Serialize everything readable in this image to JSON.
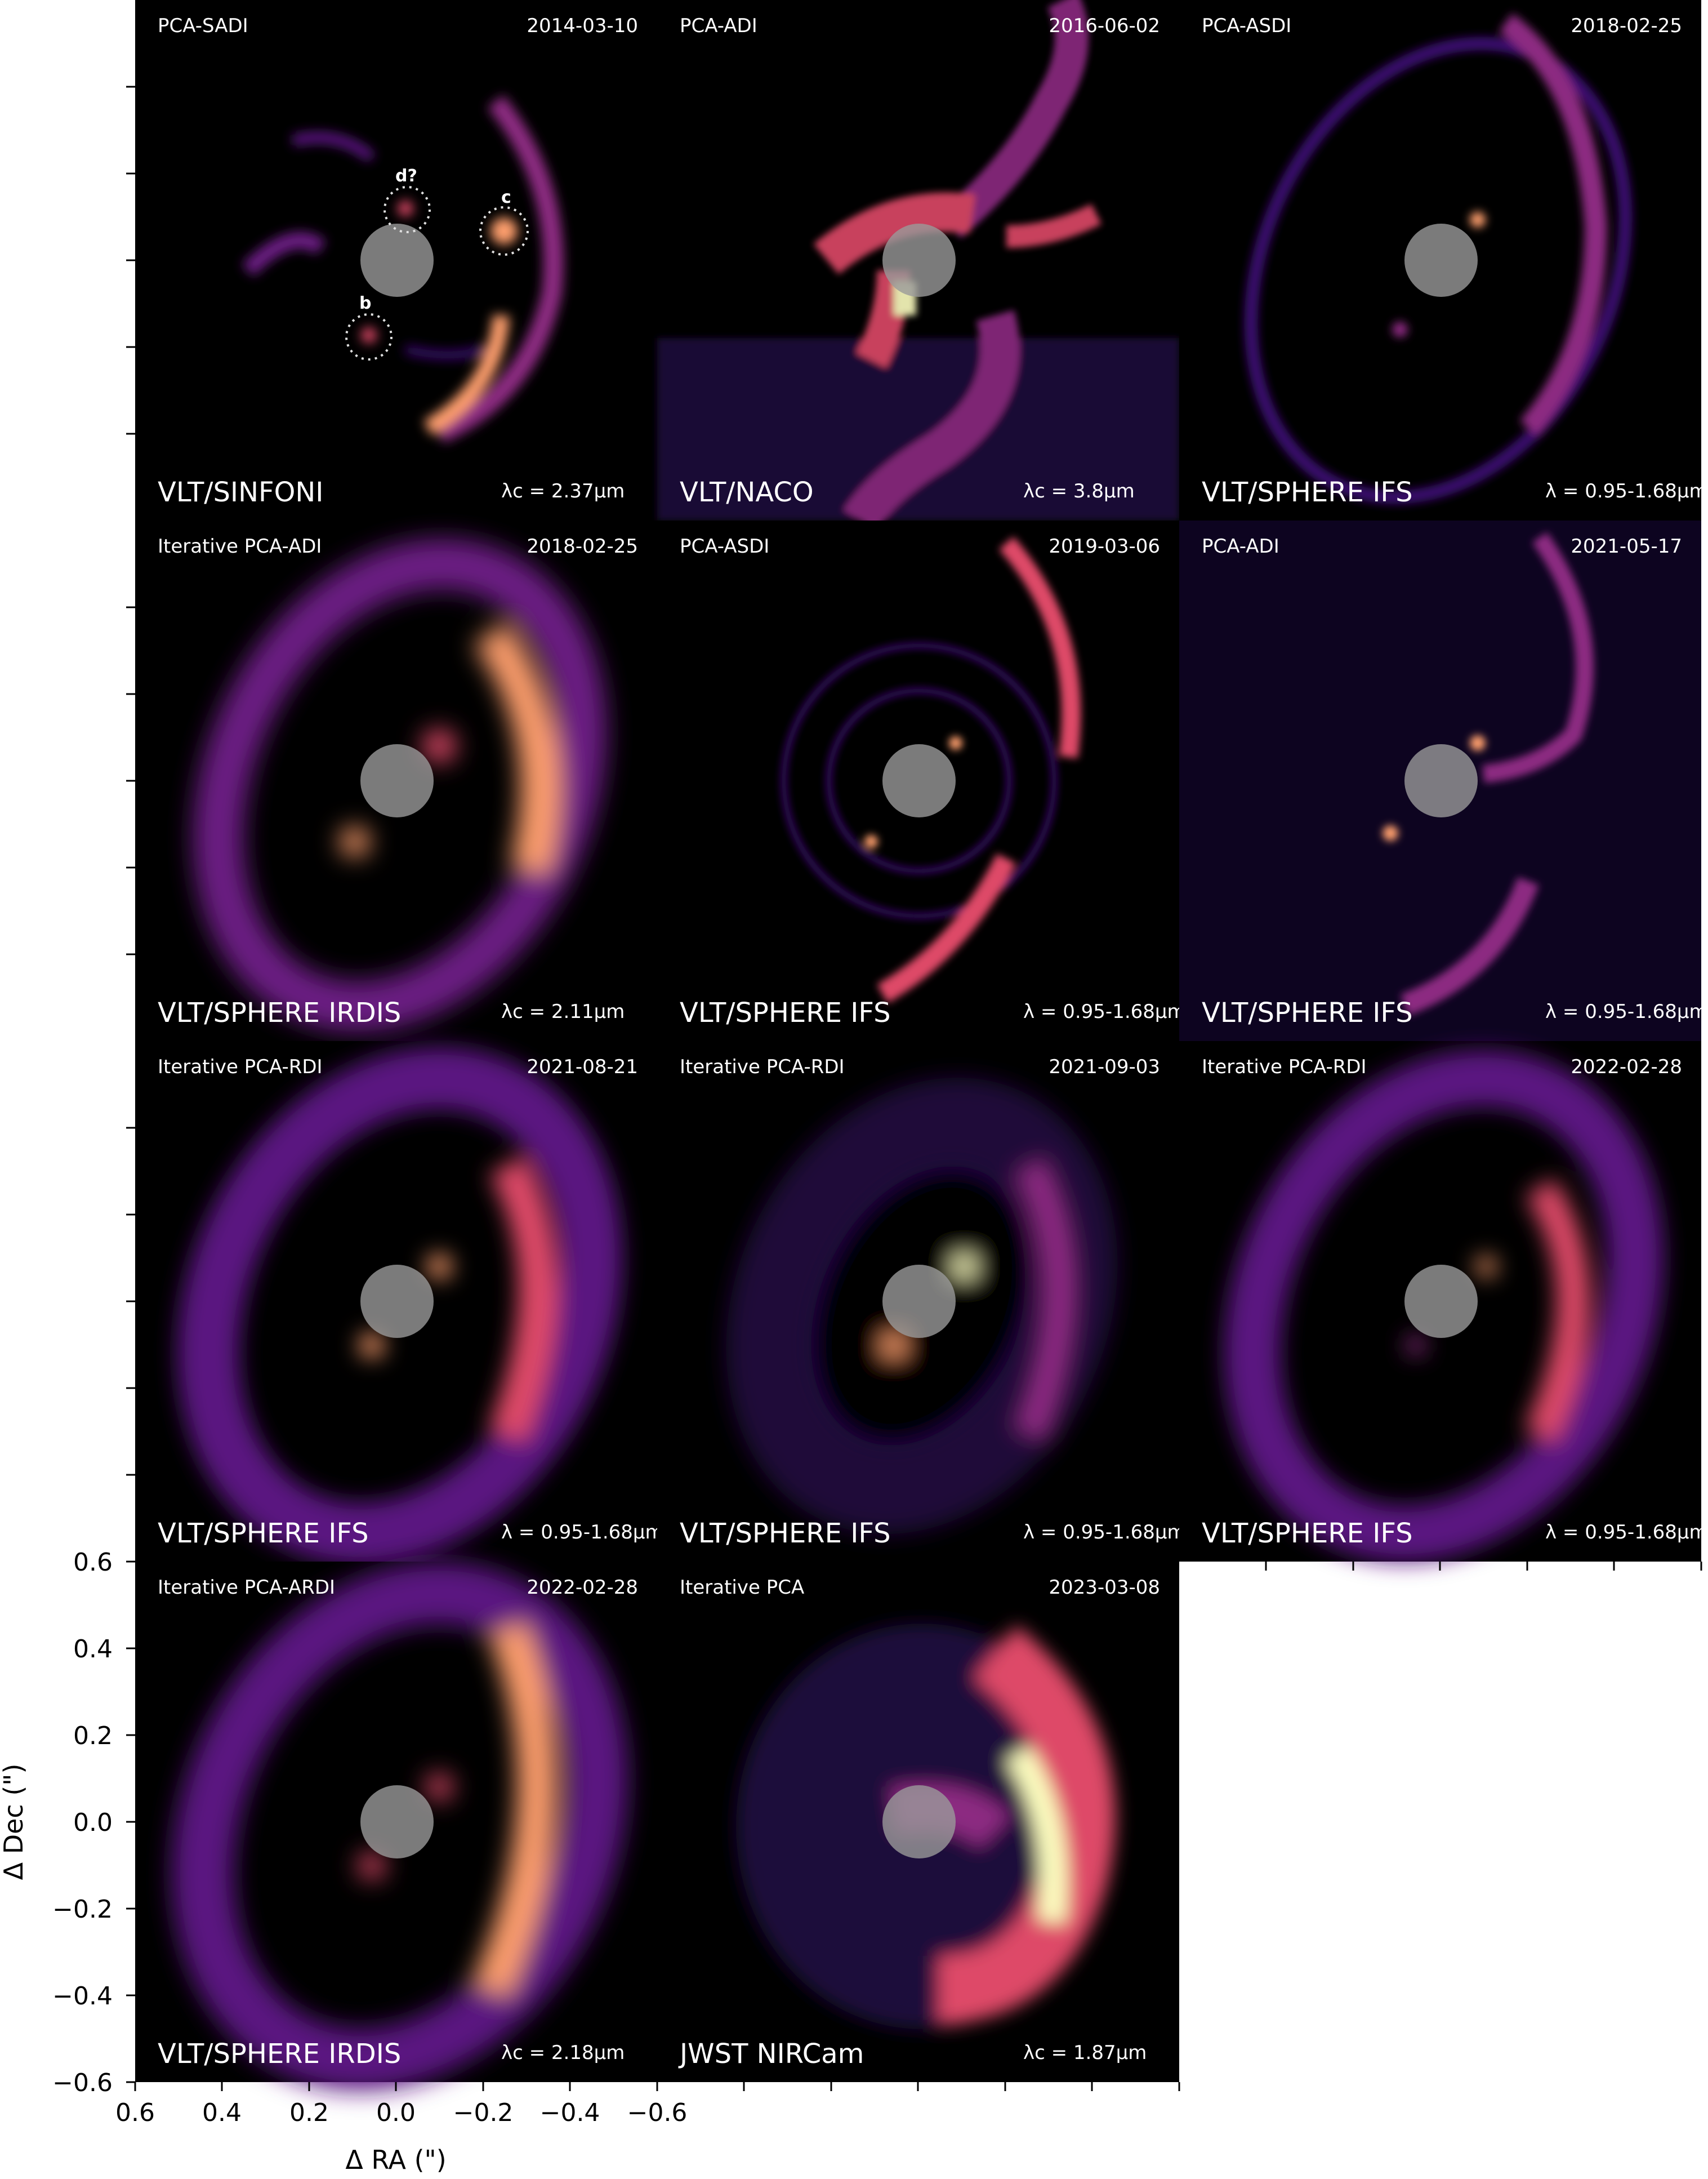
{
  "panels": [
    {
      "method": "PCA-SADI",
      "date": "2014-03-10",
      "instrument": "VLT/SINFONI",
      "wavelength": "λc = 2.37μm"
    },
    {
      "method": "PCA-ADI",
      "date": "2016-06-02",
      "instrument": "VLT/NACO",
      "wavelength": "λc = 3.8μm"
    },
    {
      "method": "PCA-ASDI",
      "date": "2018-02-25",
      "instrument": "VLT/SPHERE IFS",
      "wavelength": "λ = 0.95-1.68μm"
    },
    {
      "method": "Iterative PCA-ADI",
      "date": "2018-02-25",
      "instrument": "VLT/SPHERE IRDIS",
      "wavelength": "λc = 2.11μm"
    },
    {
      "method": "PCA-ASDI",
      "date": "2019-03-06",
      "instrument": "VLT/SPHERE IFS",
      "wavelength": "λ = 0.95-1.68μm"
    },
    {
      "method": "PCA-ADI",
      "date": "2021-05-17",
      "instrument": "VLT/SPHERE IFS",
      "wavelength": "λ = 0.95-1.68μm"
    },
    {
      "method": "Iterative PCA-RDI",
      "date": "2021-08-21",
      "instrument": "VLT/SPHERE IFS",
      "wavelength": "λ = 0.95-1.68μm"
    },
    {
      "method": "Iterative PCA-RDI",
      "date": "2021-09-03",
      "instrument": "VLT/SPHERE IFS",
      "wavelength": "λ = 0.95-1.68μm"
    },
    {
      "method": "Iterative PCA-RDI",
      "date": "2022-02-28",
      "instrument": "VLT/SPHERE IFS",
      "wavelength": "λ = 0.95-1.68μm"
    },
    {
      "method": "Iterative PCA-ARDI",
      "date": "2022-02-28",
      "instrument": "VLT/SPHERE IRDIS",
      "wavelength": "λc = 2.18μm"
    },
    {
      "method": "Iterative PCA",
      "date": "2023-03-08",
      "instrument": "JWST NIRCam",
      "wavelength": "λc = 1.87μm"
    }
  ],
  "annotations": {
    "b": "b",
    "c": "c",
    "d": "d?"
  },
  "axes": {
    "xlabel": "Δ RA (\")",
    "ylabel": "Δ Dec (\")",
    "xticks": [
      "0.6",
      "0.4",
      "0.2",
      "0.0",
      "−0.2",
      "−0.4",
      "−0.6"
    ],
    "yticks": [
      "0.6",
      "0.4",
      "0.2",
      "0.0",
      "−0.2",
      "−0.4",
      "−0.6"
    ]
  },
  "colormap": [
    "#000004",
    "#3b0f70",
    "#8c2981",
    "#de4968",
    "#fe9f6d",
    "#fcfdbf"
  ]
}
